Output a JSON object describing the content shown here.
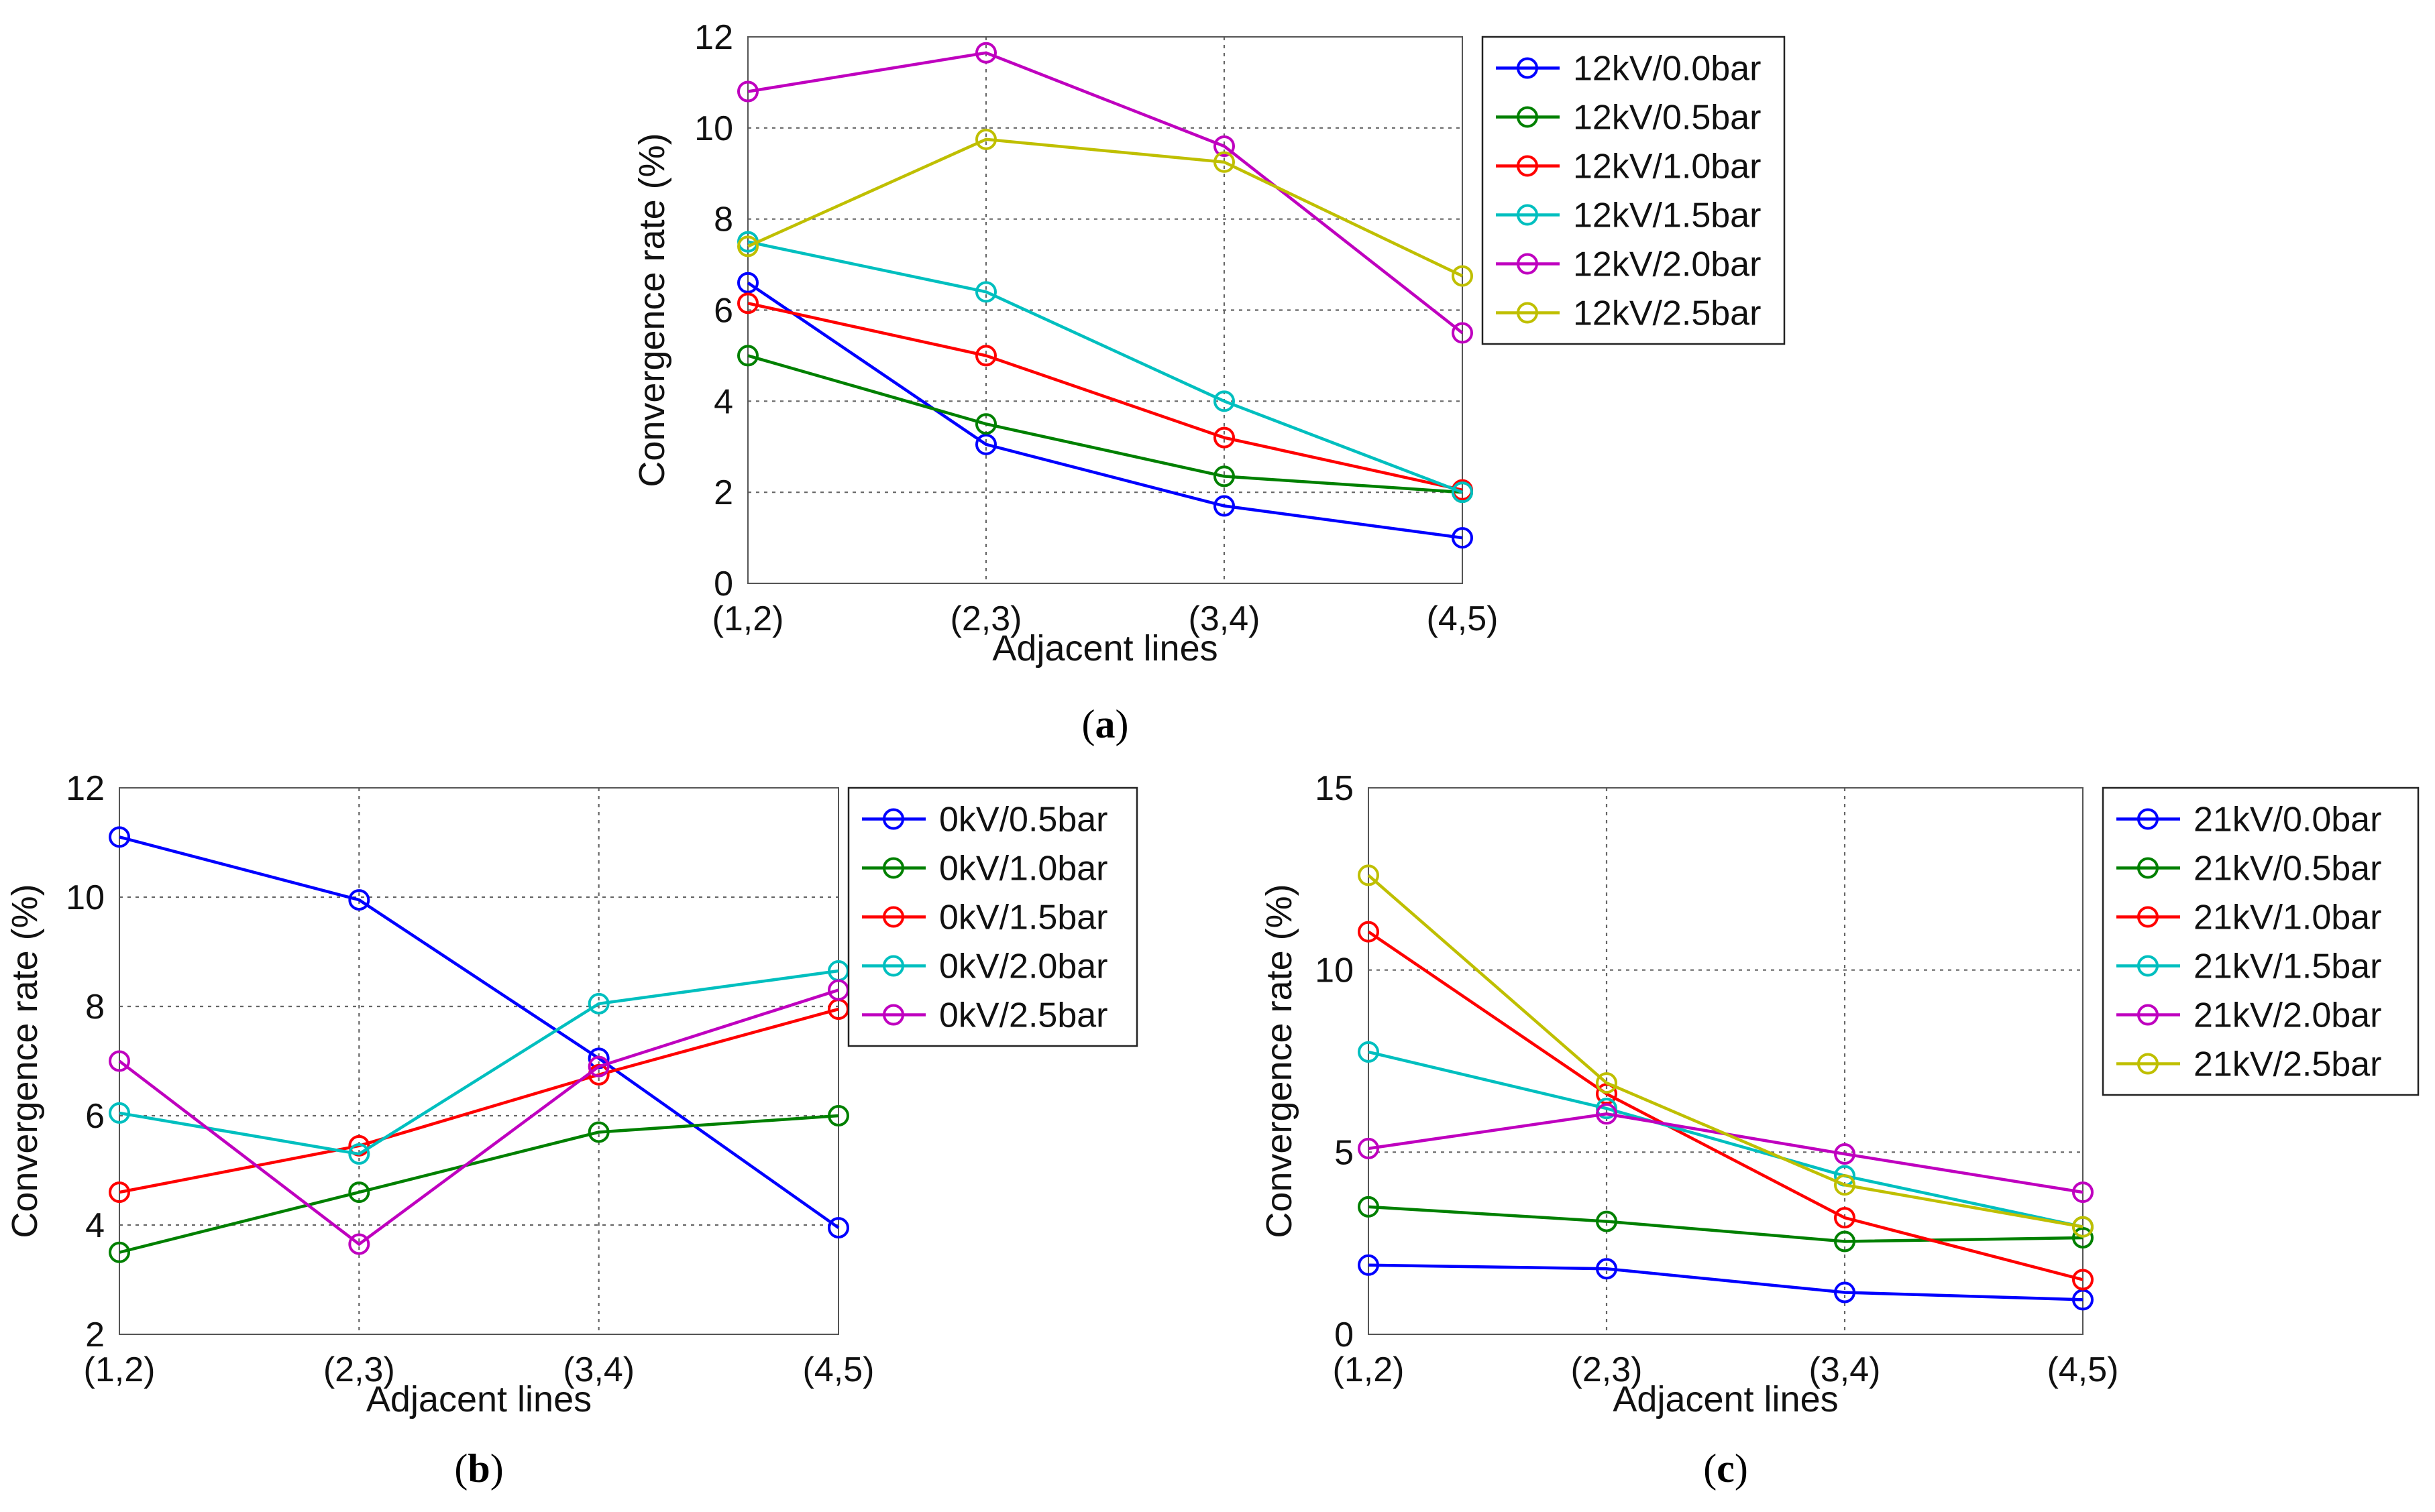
{
  "chart_data": [
    {
      "id": "a",
      "type": "line",
      "caption": "a",
      "categories": [
        "(1,2)",
        "(2,3)",
        "(3,4)",
        "(4,5)"
      ],
      "xlabel": "Adjacent lines",
      "ylabel": "Convergence rate (%)",
      "ylim": [
        0,
        12
      ],
      "yticks": [
        0,
        2,
        4,
        6,
        8,
        10,
        12
      ],
      "grid": true,
      "legend_position": "outside-right",
      "series": [
        {
          "name": "12kV/0.0bar",
          "color": "#0000ff",
          "values": [
            6.6,
            3.05,
            1.7,
            1.0
          ]
        },
        {
          "name": "12kV/0.5bar",
          "color": "#008000",
          "values": [
            5.0,
            3.5,
            2.35,
            2.0
          ]
        },
        {
          "name": "12kV/1.0bar",
          "color": "#ff0000",
          "values": [
            6.15,
            5.0,
            3.2,
            2.05
          ]
        },
        {
          "name": "12kV/1.5bar",
          "color": "#00bfbf",
          "values": [
            7.5,
            6.4,
            4.0,
            2.0
          ]
        },
        {
          "name": "12kV/2.0bar",
          "color": "#bf00bf",
          "values": [
            10.8,
            11.65,
            9.6,
            5.5
          ]
        },
        {
          "name": "12kV/2.5bar",
          "color": "#bfbf00",
          "values": [
            7.4,
            9.75,
            9.25,
            6.75
          ]
        }
      ]
    },
    {
      "id": "b",
      "type": "line",
      "caption": "b",
      "categories": [
        "(1,2)",
        "(2,3)",
        "(3,4)",
        "(4,5)"
      ],
      "xlabel": "Adjacent lines",
      "ylabel": "Convergence rate (%)",
      "ylim": [
        2,
        12
      ],
      "yticks": [
        2,
        4,
        6,
        8,
        10,
        12
      ],
      "grid": true,
      "legend_position": "inside-top-right",
      "series": [
        {
          "name": "0kV/0.5bar",
          "color": "#0000ff",
          "values": [
            11.1,
            9.95,
            7.05,
            3.95
          ]
        },
        {
          "name": "0kV/1.0bar",
          "color": "#008000",
          "values": [
            3.5,
            4.6,
            5.7,
            6.0
          ]
        },
        {
          "name": "0kV/1.5bar",
          "color": "#ff0000",
          "values": [
            4.6,
            5.45,
            6.75,
            7.95
          ]
        },
        {
          "name": "0kV/2.0bar",
          "color": "#00bfbf",
          "values": [
            6.05,
            5.3,
            8.05,
            8.65
          ]
        },
        {
          "name": "0kV/2.5bar",
          "color": "#bf00bf",
          "values": [
            7.0,
            3.65,
            6.9,
            8.3
          ]
        }
      ]
    },
    {
      "id": "c",
      "type": "line",
      "caption": "c",
      "categories": [
        "(1,2)",
        "(2,3)",
        "(3,4)",
        "(4,5)"
      ],
      "xlabel": "Adjacent lines",
      "ylabel": "Convergence rate (%)",
      "ylim": [
        0,
        15
      ],
      "yticks": [
        0,
        5,
        10,
        15
      ],
      "grid": true,
      "legend_position": "outside-right",
      "series": [
        {
          "name": "21kV/0.0bar",
          "color": "#0000ff",
          "values": [
            1.9,
            1.8,
            1.15,
            0.95
          ]
        },
        {
          "name": "21kV/0.5bar",
          "color": "#008000",
          "values": [
            3.5,
            3.1,
            2.55,
            2.65
          ]
        },
        {
          "name": "21kV/1.0bar",
          "color": "#ff0000",
          "values": [
            11.05,
            6.6,
            3.2,
            1.5
          ]
        },
        {
          "name": "21kV/1.5bar",
          "color": "#00bfbf",
          "values": [
            7.75,
            6.2,
            4.35,
            2.95
          ]
        },
        {
          "name": "21kV/2.0bar",
          "color": "#bf00bf",
          "values": [
            5.1,
            6.05,
            4.95,
            3.9
          ]
        },
        {
          "name": "21kV/2.5bar",
          "color": "#bfbf00",
          "values": [
            12.6,
            6.9,
            4.1,
            2.95
          ]
        }
      ]
    }
  ]
}
